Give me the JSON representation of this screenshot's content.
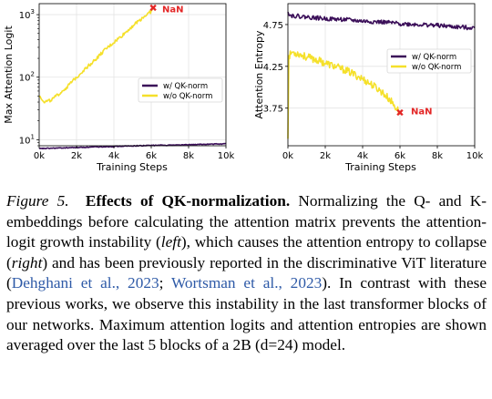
{
  "chart_data": [
    {
      "type": "line",
      "xlabel": "Training Steps",
      "ylabel": "Max Attention Logit",
      "yscale": "log",
      "xlim": [
        0,
        10000
      ],
      "ylim": [
        8,
        1500
      ],
      "xticks": [
        "0k",
        "2k",
        "4k",
        "6k",
        "8k",
        "10k"
      ],
      "yticks": [
        "10^1",
        "10^2",
        "10^3"
      ],
      "grid": true,
      "legend": "center-right",
      "series": [
        {
          "name": "w/ QK-norm",
          "color": "#3b0f59",
          "x": [
            0,
            2000,
            4000,
            6000,
            8000,
            10000
          ],
          "y": [
            7.2,
            7.5,
            7.8,
            8.1,
            8.3,
            8.6
          ]
        },
        {
          "name": "w/o QK-norm",
          "color": "#f5e02a",
          "x": [
            0,
            300,
            700,
            1000,
            1500,
            2000,
            2500,
            3000,
            3500,
            4000,
            4500,
            5000,
            5500,
            6000,
            6100
          ],
          "y": [
            50,
            40,
            44,
            52,
            70,
            100,
            140,
            190,
            270,
            360,
            480,
            660,
            880,
            1130,
            1280
          ]
        }
      ],
      "annotations": [
        {
          "text": "NaN",
          "x": 6100,
          "y": 1280,
          "color": "#e32626"
        }
      ]
    },
    {
      "type": "line",
      "xlabel": "Training Steps",
      "ylabel": "Attention Entropy",
      "xlim": [
        0,
        10000
      ],
      "ylim": [
        3.3,
        5.0
      ],
      "xticks": [
        "0k",
        "2k",
        "4k",
        "6k",
        "8k",
        "10k"
      ],
      "yticks": [
        "3.75",
        "4.25",
        "4.75"
      ],
      "grid": true,
      "legend": "center-right",
      "series": [
        {
          "name": "w/ QK-norm",
          "color": "#3b0f59",
          "x": [
            0,
            100,
            1000,
            2000,
            3000,
            4000,
            5000,
            6000,
            7000,
            8000,
            9000,
            10000
          ],
          "y": [
            4.92,
            4.86,
            4.84,
            4.82,
            4.81,
            4.79,
            4.78,
            4.76,
            4.75,
            4.74,
            4.72,
            4.71
          ]
        },
        {
          "name": "w/o QK-norm",
          "color": "#f5e02a",
          "x": [
            0,
            50,
            200,
            600,
            1000,
            1500,
            2000,
            2500,
            3000,
            3500,
            4000,
            4500,
            5000,
            5500,
            5800,
            6000
          ],
          "y": [
            3.4,
            4.36,
            4.42,
            4.4,
            4.36,
            4.33,
            4.29,
            4.25,
            4.21,
            4.16,
            4.1,
            4.03,
            3.95,
            3.84,
            3.75,
            3.7
          ]
        }
      ],
      "annotations": [
        {
          "text": "NaN",
          "x": 6000,
          "y": 3.7,
          "color": "#e32626"
        }
      ]
    }
  ],
  "caption": {
    "label": "Figure 5.",
    "title": "Effects of QK-normalization.",
    "part1": "Normalizing the Q- and K-embeddings before calculating the attention matrix prevents the attention-logit growth instability (",
    "left": "left",
    "part2": "), which causes the attention entropy to collapse (",
    "right": "right",
    "part3": ") and has been previously reported in the discriminative ViT literature (",
    "cite1": "Dehghani et al., 2023",
    "sep": "; ",
    "cite2": "Wortsman et al., 2023",
    "part4": "). In contrast with these previous works, we observe this instability in the last transformer blocks of our networks. Maximum attention logits and attention entropies are shown averaged over the last 5 blocks of a 2B (d=24) model."
  }
}
